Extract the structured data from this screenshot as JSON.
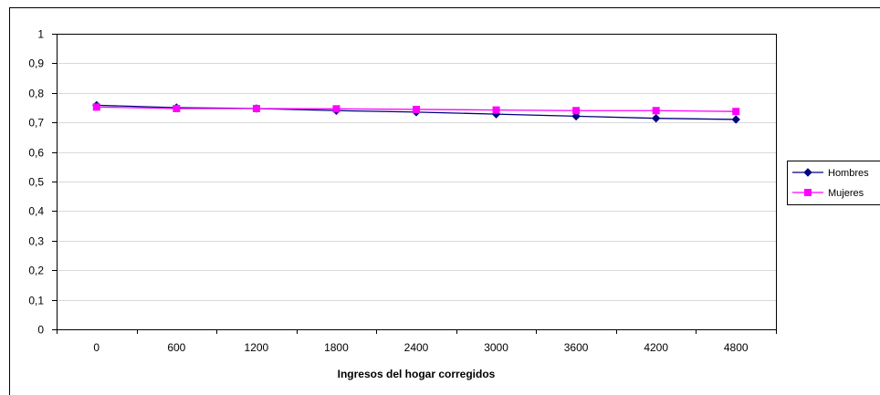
{
  "chart_data": {
    "type": "line",
    "title": "",
    "xlabel": "Ingresos del hogar corregidos",
    "ylabel": "",
    "categories": [
      "0",
      "600",
      "1200",
      "1800",
      "2400",
      "3000",
      "3600",
      "4200",
      "4800"
    ],
    "yticks": [
      "0",
      "0,1",
      "0,2",
      "0,3",
      "0,4",
      "0,5",
      "0,6",
      "0,7",
      "0,8",
      "0,9",
      "1"
    ],
    "ylim": [
      0,
      1
    ],
    "grid": "horizontal",
    "legend_position": "right",
    "series": [
      {
        "name": "Hombres",
        "color": "#000080",
        "marker": "diamond",
        "values": [
          0.758,
          0.75,
          0.747,
          0.74,
          0.735,
          0.728,
          0.721,
          0.714,
          0.71
        ]
      },
      {
        "name": "Mujeres",
        "color": "#ff00ff",
        "marker": "square",
        "values": [
          0.752,
          0.747,
          0.747,
          0.746,
          0.744,
          0.742,
          0.74,
          0.74,
          0.737
        ]
      }
    ]
  }
}
